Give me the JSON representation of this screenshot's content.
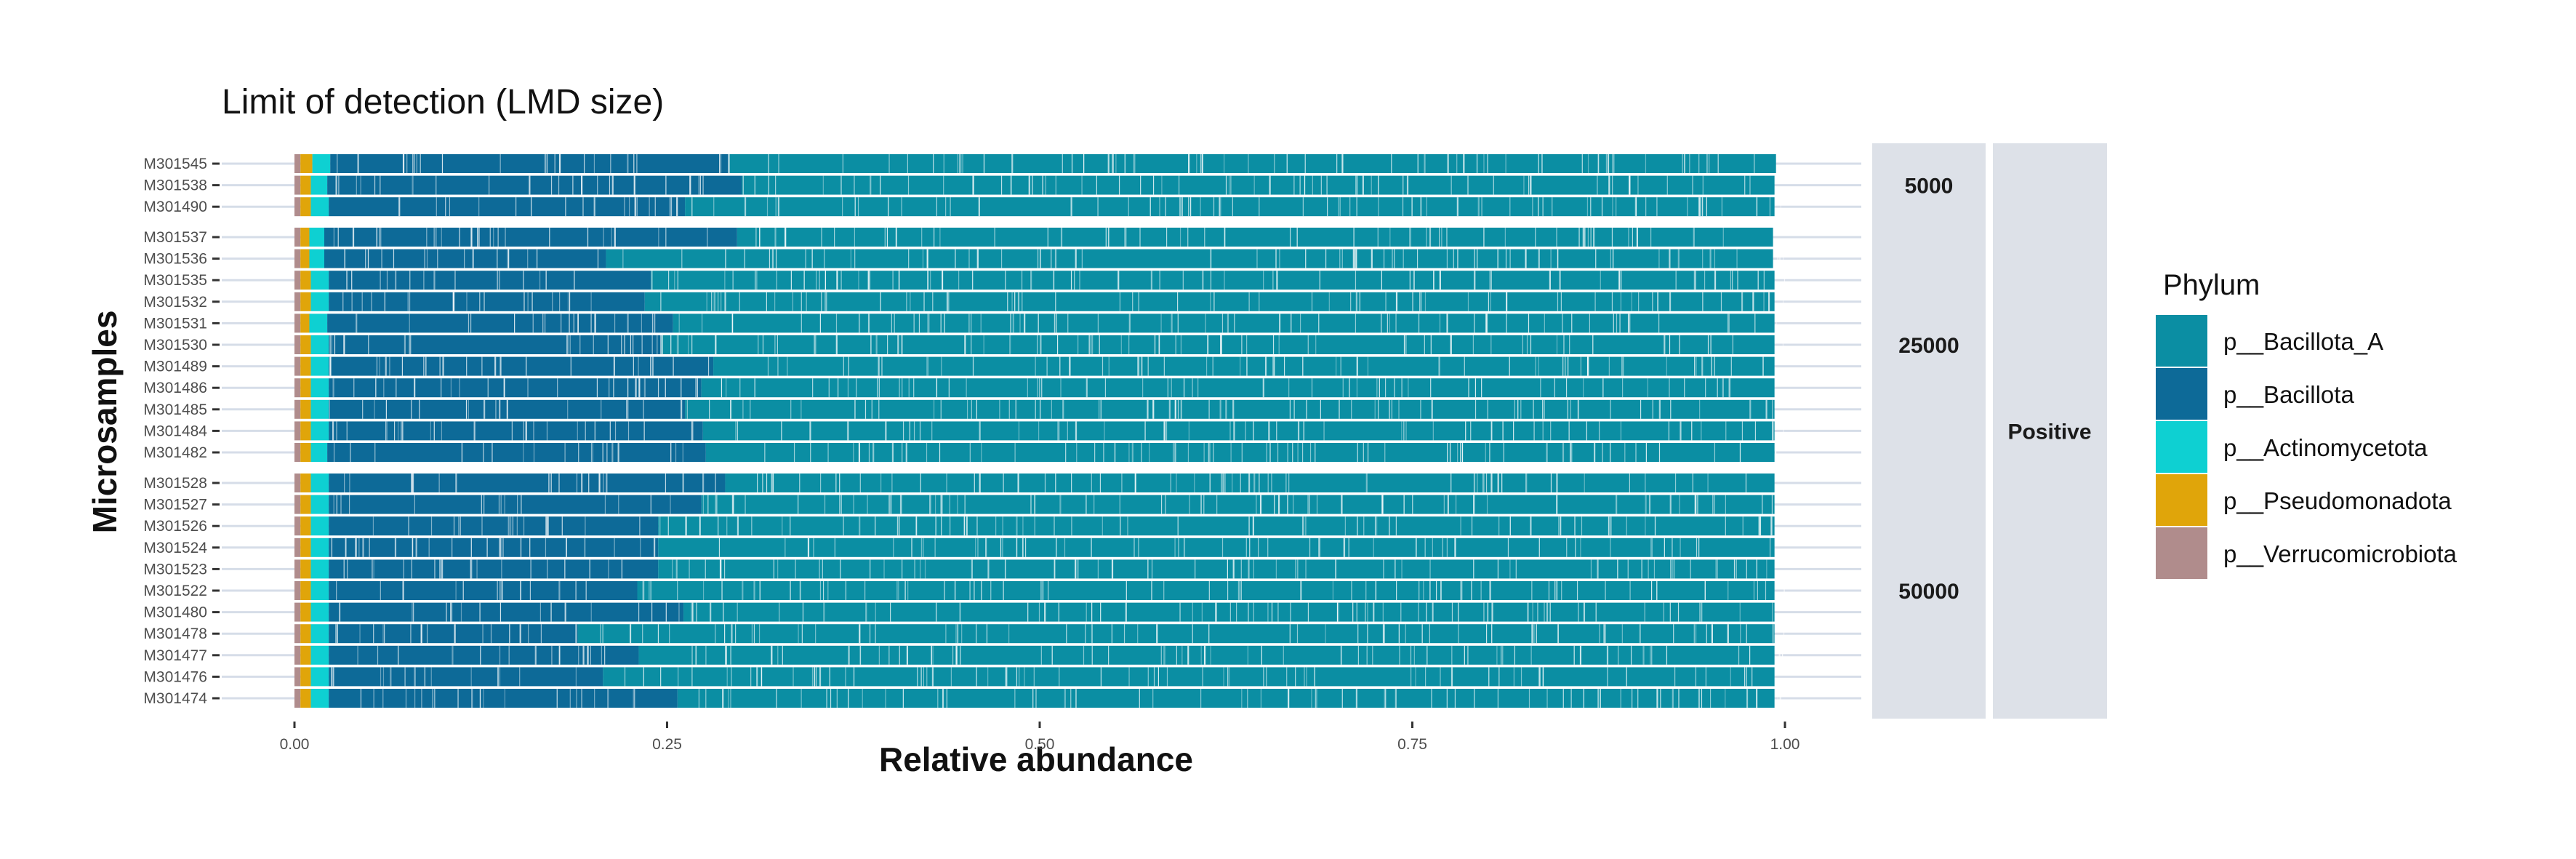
{
  "chart_data": {
    "type": "bar",
    "orientation": "horizontal",
    "stacked": true,
    "title": "Limit of detection (LMD size)",
    "xlabel": "Relative abundance",
    "ylabel": "Microsamples",
    "xlim": [
      0,
      1
    ],
    "x_ticks": [
      "0.00",
      "0.25",
      "0.50",
      "0.75",
      "1.00"
    ],
    "legend": {
      "title": "Phylum",
      "position": "right",
      "items": [
        {
          "name": "p__Bacillota_A",
          "color": "#0b8ea3"
        },
        {
          "name": "p__Bacillota",
          "color": "#0d6a98"
        },
        {
          "name": "p__Actinomycetota",
          "color": "#0ed0d2"
        },
        {
          "name": "p__Pseudomonadota",
          "color": "#e0a50a"
        },
        {
          "name": "p__Verrucomicrobiota",
          "color": "#b08c8c"
        }
      ]
    },
    "outer_facet": "Positive",
    "facets": [
      {
        "label": "5000",
        "samples": [
          {
            "id": "M301545",
            "values": [
              0.703,
              0.267,
              0.012,
              0.008,
              0.004
            ]
          },
          {
            "id": "M301538",
            "values": [
              0.693,
              0.278,
              0.011,
              0.007,
              0.004
            ]
          },
          {
            "id": "M301490",
            "values": [
              0.731,
              0.239,
              0.012,
              0.007,
              0.004
            ]
          }
        ]
      },
      {
        "label": "25000",
        "samples": [
          {
            "id": "M301537",
            "values": [
              0.695,
              0.277,
              0.01,
              0.006,
              0.004
            ]
          },
          {
            "id": "M301536",
            "values": [
              0.783,
              0.189,
              0.01,
              0.006,
              0.004
            ]
          },
          {
            "id": "M301535",
            "values": [
              0.754,
              0.216,
              0.012,
              0.007,
              0.004
            ]
          },
          {
            "id": "M301532",
            "values": [
              0.758,
              0.212,
              0.012,
              0.007,
              0.004
            ]
          },
          {
            "id": "M301531",
            "values": [
              0.739,
              0.232,
              0.012,
              0.006,
              0.004
            ]
          },
          {
            "id": "M301530",
            "values": [
              0.747,
              0.223,
              0.012,
              0.007,
              0.004
            ]
          },
          {
            "id": "M301489",
            "values": [
              0.712,
              0.258,
              0.012,
              0.007,
              0.004
            ]
          },
          {
            "id": "M301486",
            "values": [
              0.72,
              0.25,
              0.012,
              0.007,
              0.004
            ]
          },
          {
            "id": "M301485",
            "values": [
              0.731,
              0.239,
              0.012,
              0.007,
              0.004
            ]
          },
          {
            "id": "M301484",
            "values": [
              0.719,
              0.251,
              0.012,
              0.007,
              0.004
            ]
          },
          {
            "id": "M301482",
            "values": [
              0.717,
              0.254,
              0.011,
              0.007,
              0.004
            ]
          }
        ]
      },
      {
        "label": "50000",
        "samples": [
          {
            "id": "M301528",
            "values": [
              0.704,
              0.266,
              0.012,
              0.007,
              0.004
            ]
          },
          {
            "id": "M301527",
            "values": [
              0.72,
              0.25,
              0.012,
              0.007,
              0.004
            ]
          },
          {
            "id": "M301526",
            "values": [
              0.749,
              0.221,
              0.012,
              0.007,
              0.004
            ]
          },
          {
            "id": "M301524",
            "values": [
              0.749,
              0.221,
              0.012,
              0.007,
              0.004
            ]
          },
          {
            "id": "M301523",
            "values": [
              0.749,
              0.221,
              0.012,
              0.007,
              0.004
            ]
          },
          {
            "id": "M301522",
            "values": [
              0.763,
              0.207,
              0.012,
              0.007,
              0.004
            ]
          },
          {
            "id": "M301480",
            "values": [
              0.732,
              0.238,
              0.012,
              0.007,
              0.004
            ]
          },
          {
            "id": "M301478",
            "values": [
              0.803,
              0.167,
              0.012,
              0.007,
              0.004
            ]
          },
          {
            "id": "M301477",
            "values": [
              0.762,
              0.208,
              0.012,
              0.007,
              0.004
            ]
          },
          {
            "id": "M301476",
            "values": [
              0.786,
              0.184,
              0.012,
              0.007,
              0.004
            ]
          },
          {
            "id": "M301474",
            "values": [
              0.736,
              0.234,
              0.012,
              0.007,
              0.004
            ]
          }
        ]
      }
    ],
    "grid": true
  }
}
